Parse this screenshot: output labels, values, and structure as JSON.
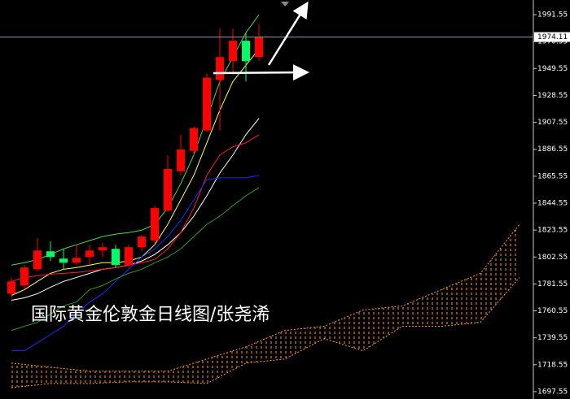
{
  "chart_data": {
    "type": "candlestick",
    "annotation": "国际黄金伦敦金日线图/张尧浠",
    "ylim": [
      1691.8,
      2003.0
    ],
    "yticks": [
      1697.55,
      1718.55,
      1739.55,
      1760.55,
      1781.55,
      1802.55,
      1823.55,
      1844.55,
      1865.55,
      1886.55,
      1907.55,
      1928.55,
      1949.55,
      1970.55,
      1991.55
    ],
    "current_price": 1974.11,
    "up_color": "#ff0000",
    "down_color": "#00ff66",
    "candles": {
      "open": [
        1773.9,
        1780.3,
        1793.0,
        1807.0,
        1801.3,
        1798.1,
        1802.5,
        1807.6,
        1808.9,
        1796.2,
        1810.2,
        1815.3,
        1838.8,
        1869.4,
        1885.3,
        1901.2,
        1940.6,
        1955.3,
        1971.2,
        1958.5
      ],
      "high": [
        1786.6,
        1796.2,
        1817.2,
        1814.6,
        1808.9,
        1812.1,
        1812.1,
        1813.4,
        1812.1,
        1812.1,
        1819.8,
        1842.6,
        1882.1,
        1898.0,
        1904.4,
        1945.7,
        1980.7,
        1980.7,
        1977.5,
        1983.9
      ],
      "low": [
        1770.7,
        1777.1,
        1791.1,
        1799.4,
        1793.0,
        1796.2,
        1796.2,
        1802.5,
        1794.3,
        1794.3,
        1807.0,
        1813.4,
        1837.5,
        1866.2,
        1882.1,
        1899.9,
        1901.2,
        1944.5,
        1939.4,
        1955.3
      ],
      "close": [
        1783.5,
        1794.3,
        1807.6,
        1802.5,
        1798.1,
        1801.9,
        1807.6,
        1810.2,
        1796.2,
        1810.2,
        1818.5,
        1840.7,
        1871.3,
        1886.5,
        1903.1,
        1942.5,
        1958.5,
        1971.2,
        1955.3,
        1974.11
      ]
    },
    "lines": [
      {
        "color": "#ffff66",
        "values": [
          1772.6,
          1777.1,
          1783.5,
          1789.8,
          1793.0,
          1794.3,
          1796.2,
          1798.1,
          1798.1,
          1799.4,
          1802.5,
          1812.1,
          1828.0,
          1847.1,
          1866.2,
          1891.6,
          1917.1,
          1939.4,
          1952.1,
          1964.8
        ]
      },
      {
        "color": "#ffffff",
        "values": [
          1768.8,
          1770.7,
          1773.9,
          1779.0,
          1783.5,
          1786.6,
          1789.8,
          1793.0,
          1794.3,
          1796.2,
          1799.4,
          1804.5,
          1812.1,
          1821.6,
          1834.4,
          1850.3,
          1868.1,
          1882.1,
          1898.0,
          1910.7
        ]
      },
      {
        "color": "#ff2020",
        "values": [
          1783.5,
          1786.6,
          1787.9,
          1789.2,
          1789.8,
          1790.5,
          1791.7,
          1793.0,
          1794.3,
          1796.2,
          1798.1,
          1800.6,
          1808.9,
          1821.6,
          1840.7,
          1866.2,
          1882.1,
          1888.5,
          1891.6,
          1898.0
        ]
      },
      {
        "color": "#1a2cff",
        "values": [
          1729.4,
          1729.4,
          1735.7,
          1742.1,
          1748.5,
          1758.0,
          1767.5,
          1773.9,
          1783.5,
          1793.0,
          1802.5,
          1808.9,
          1818.5,
          1831.2,
          1847.1,
          1863.0,
          1864.3,
          1864.3,
          1864.3,
          1866.2
        ]
      },
      {
        "color": "#44dd44",
        "values": [
          1796.2,
          1798.1,
          1800.6,
          1804.5,
          1808.9,
          1812.1,
          1815.3,
          1818.5,
          1820.4,
          1821.6,
          1823.5,
          1828.0,
          1840.7,
          1859.8,
          1882.1,
          1910.7,
          1939.4,
          1958.5,
          1977.5,
          1991.5
        ]
      },
      {
        "color": "#2e9a2e",
        "values": [
          1745.3,
          1748.5,
          1751.6,
          1758.0,
          1764.4,
          1767.5,
          1777.1,
          1780.3,
          1785.4,
          1789.8,
          1793.0,
          1798.1,
          1802.5,
          1808.9,
          1818.5,
          1828.0,
          1834.4,
          1842.6,
          1850.3,
          1856.6
        ]
      }
    ],
    "cloud": {
      "color": "#ff9933",
      "x": [
        0,
        3,
        6,
        9,
        12,
        15,
        18,
        21,
        24,
        27,
        30,
        33,
        36,
        39
      ],
      "upper": [
        1719.8,
        1716.6,
        1713.5,
        1713.5,
        1713.5,
        1723.0,
        1732.5,
        1745.3,
        1748.5,
        1761.2,
        1764.4,
        1777.1,
        1789.8,
        1828.0
      ],
      "lower": [
        1700.7,
        1703.9,
        1703.9,
        1705.2,
        1705.2,
        1703.9,
        1719.8,
        1723.0,
        1738.9,
        1729.4,
        1748.5,
        1748.5,
        1751.6,
        1786.6
      ]
    }
  }
}
